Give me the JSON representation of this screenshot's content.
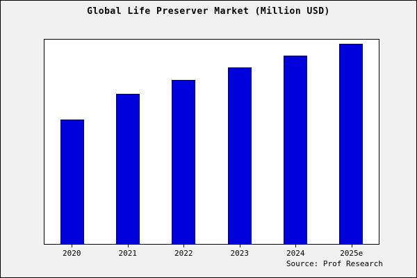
{
  "title": "Global Life Preserver Market (Million USD)",
  "source": "Source: Prof Research",
  "colors": {
    "background": "#f0f0f0",
    "plot_background": "#ffffff",
    "bar_fill": "#0000dd",
    "bar_border": "#000066",
    "axis": "#000000"
  },
  "chart_data": {
    "type": "bar",
    "title": "Global Life Preserver Market (Million USD)",
    "categories": [
      "2020",
      "2021",
      "2022",
      "2023",
      "2024",
      "2025e"
    ],
    "values": [
      62,
      75,
      82,
      88,
      94,
      100
    ],
    "xlabel": "",
    "ylabel": "",
    "ylim": [
      0,
      102
    ],
    "grid": false,
    "legend": false,
    "bar_color": "#0000dd",
    "source": "Source: Prof Research"
  }
}
